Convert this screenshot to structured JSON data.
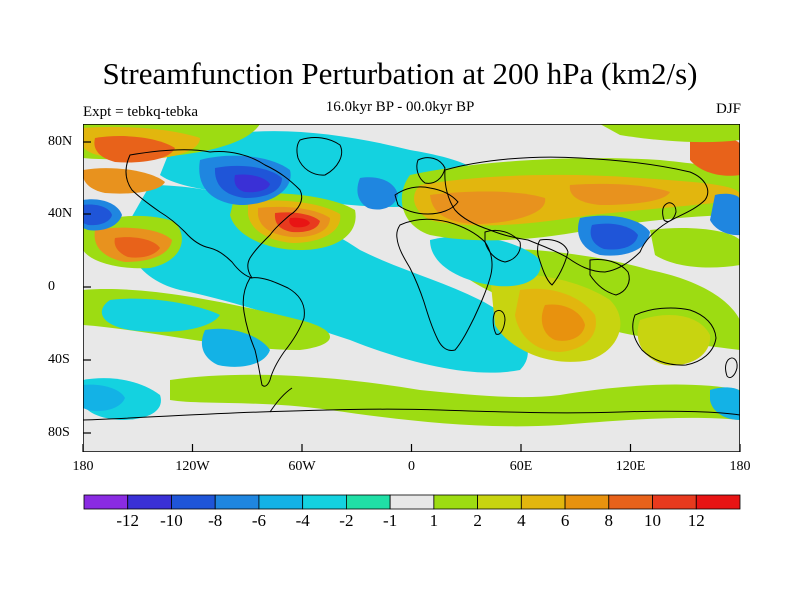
{
  "title": "Streamfunction Perturbation at 200 hPa (km2/s)",
  "subtitle": "16.0kyr BP - 00.0kyr BP",
  "left_label": "Expt = tebkq-tebka",
  "right_label": "DJF",
  "lat_labels": [
    "80N",
    "40N",
    "0",
    "40S",
    "80S"
  ],
  "lon_labels": [
    "180",
    "120W",
    "60W",
    "0",
    "60E",
    "120E",
    "180"
  ],
  "colorbar": {
    "labels": [
      "-12",
      "-10",
      "-8",
      "-6",
      "-4",
      "-2",
      "-1",
      "1",
      "2",
      "4",
      "6",
      "8",
      "10",
      "12"
    ],
    "colors": [
      "#8a2be2",
      "#3a30d6",
      "#1f55d8",
      "#1f86e0",
      "#13b2e6",
      "#14d2e0",
      "#20dfa6",
      "#e8e8e8",
      "#9ddc12",
      "#c8d410",
      "#e2b60e",
      "#e8920e",
      "#e8621a",
      "#e83a1e",
      "#e81414"
    ]
  },
  "map_features": {
    "projection": "cylindrical equidistant",
    "background_level_color": "#e8e8e8",
    "coastlines_color": "#000000"
  }
}
